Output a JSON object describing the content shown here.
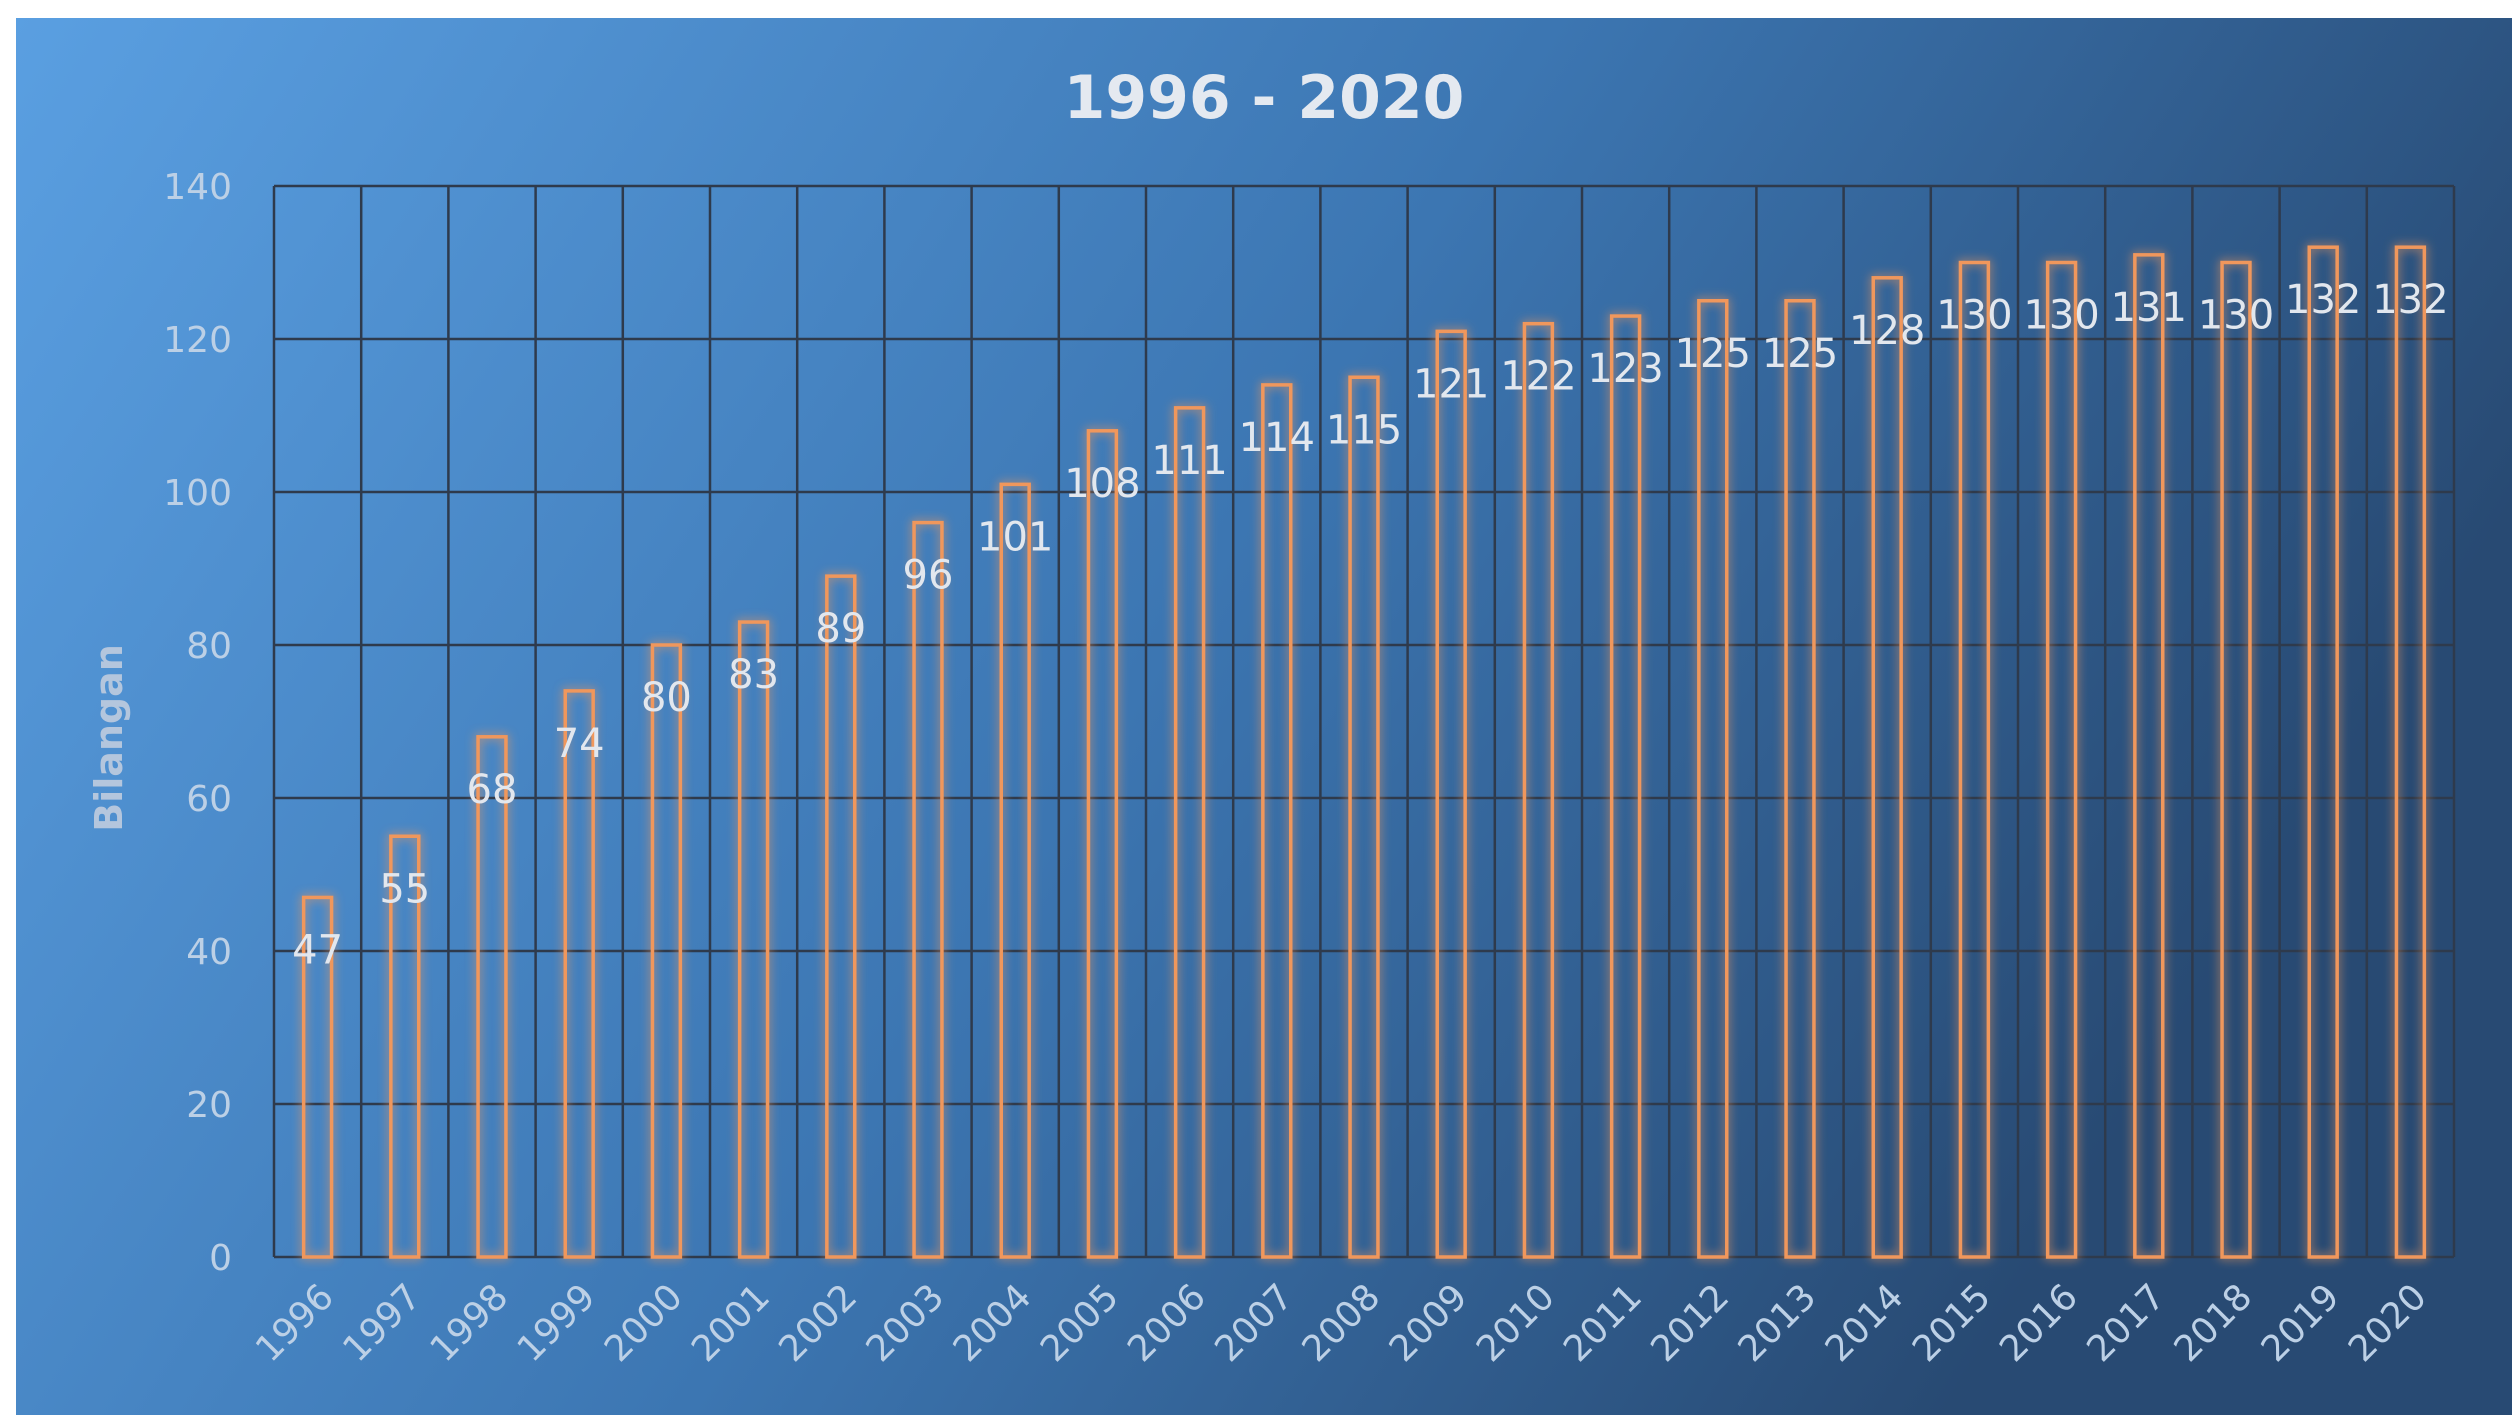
{
  "chart_data": {
    "type": "bar",
    "title": "1996 - 2020",
    "xlabel": "",
    "ylabel": "Bilangan",
    "ylim": [
      0,
      140
    ],
    "yticks": [
      0,
      20,
      40,
      60,
      80,
      100,
      120,
      140
    ],
    "grid": true,
    "legend": "none",
    "categories": [
      "1996",
      "1997",
      "1998",
      "1999",
      "2000",
      "2001",
      "2002",
      "2003",
      "2004",
      "2005",
      "2006",
      "2007",
      "2008",
      "2009",
      "2010",
      "2011",
      "2012",
      "2013",
      "2014",
      "2015",
      "2016",
      "2017",
      "2018",
      "2019",
      "2020"
    ],
    "values": [
      47,
      55,
      68,
      74,
      80,
      83,
      89,
      96,
      101,
      108,
      111,
      114,
      115,
      121,
      122,
      123,
      125,
      125,
      128,
      130,
      130,
      131,
      130,
      132,
      132
    ],
    "bar_outline_color": "#f0975b",
    "background_gradient": [
      "#5a9ee0",
      "#2a4d77"
    ]
  }
}
